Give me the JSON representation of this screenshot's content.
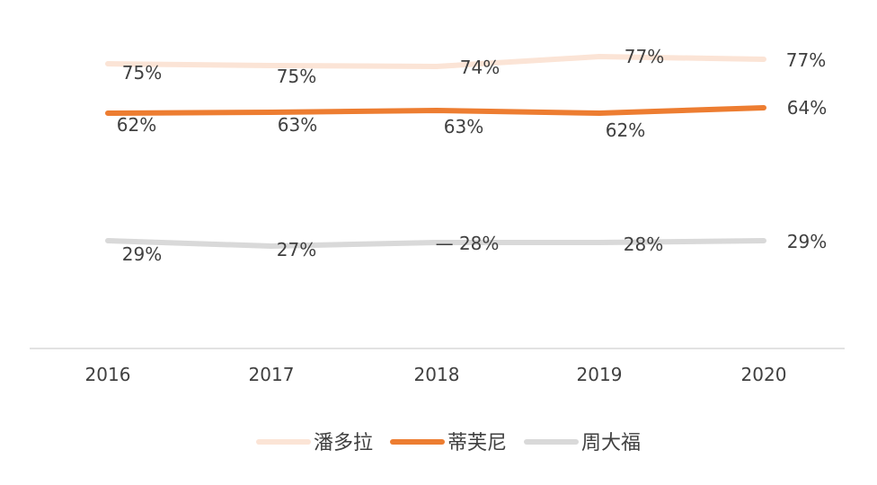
{
  "chart_data": {
    "type": "line",
    "categories": [
      "2016",
      "2017",
      "2018",
      "2019",
      "2020"
    ],
    "series": [
      {
        "name": "潘多拉",
        "color": "#FBE4D6",
        "values": [
          75,
          75,
          74,
          77,
          77
        ],
        "labels": [
          "75%",
          "75%",
          "74%",
          "77%",
          "77%"
        ]
      },
      {
        "name": "蒂芙尼",
        "color": "#ED7D31",
        "values": [
          62,
          63,
          63,
          62,
          64
        ],
        "labels": [
          "62%",
          "63%",
          "63%",
          "62%",
          "64%"
        ]
      },
      {
        "name": "周大福",
        "color": "#D9D9D9",
        "values": [
          29,
          27,
          28,
          28,
          29
        ],
        "labels": [
          "29%",
          "27%",
          "— 28%",
          "28%",
          "29%"
        ]
      }
    ],
    "legend_position": "bottom",
    "grid": false,
    "axis_color": "#D9D9D9",
    "text_color": "#404040"
  }
}
